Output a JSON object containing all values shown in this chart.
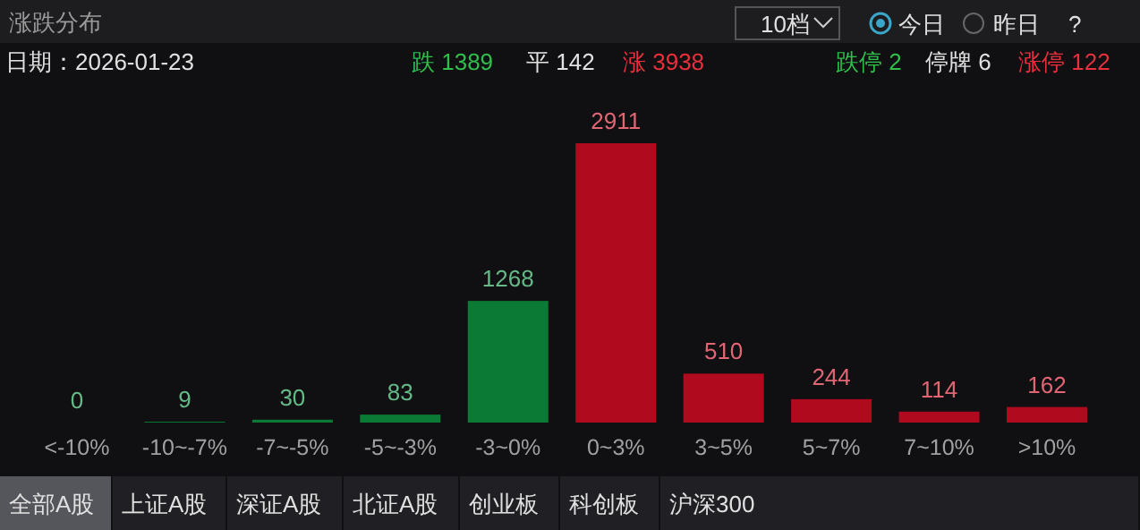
{
  "chart_data": {
    "type": "bar",
    "title": "涨跌分布",
    "data_labels": true,
    "categories": [
      "<-10%",
      "-10~-7%",
      "-7~-5%",
      "-5~-3%",
      "-3~0%",
      "0~3%",
      "3~5%",
      "5~7%",
      "7~10%",
      ">10%"
    ],
    "values": [
      0,
      9,
      30,
      83,
      1268,
      2911,
      510,
      244,
      114,
      162
    ],
    "colors": [
      "#0a7a35",
      "#0a7a35",
      "#0a7a35",
      "#0a7a35",
      "#0a7a35",
      "#b00a1e",
      "#b00a1e",
      "#b00a1e",
      "#b00a1e",
      "#b00a1e"
    ],
    "annotations": [
      "日期：2026-01-23",
      "跌 1389",
      "平 142",
      "涨 3938",
      "跌停 2",
      "停牌 6",
      "涨停 122",
      "10档",
      "今日",
      "昨日",
      "?",
      "全部A股",
      "上证A股",
      "深证A股",
      "北证A股",
      "创业板",
      "科创板",
      "沪深300"
    ]
  }
}
